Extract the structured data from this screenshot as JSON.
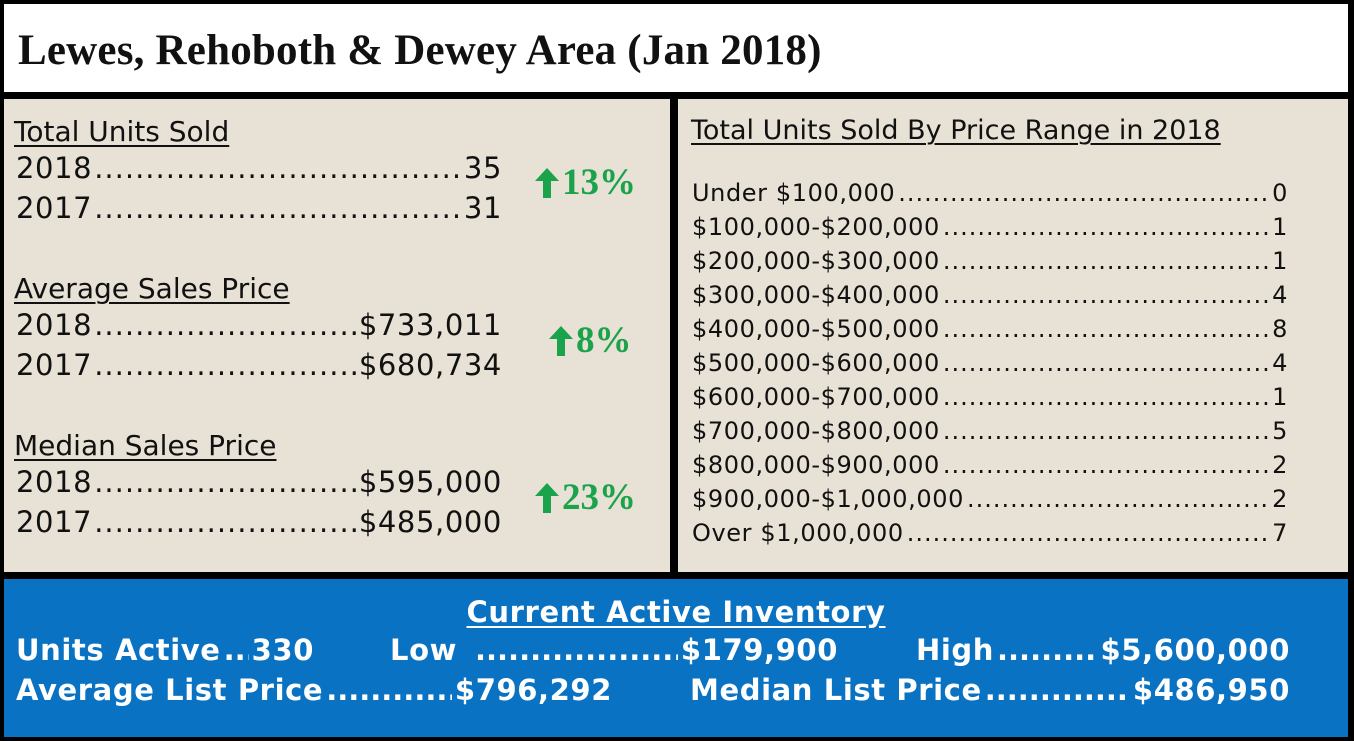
{
  "title": "Lewes, Rehoboth & Dewey Area (Jan 2018)",
  "colors": {
    "accent_green": "#1aa34a",
    "panel_bg": "#e8e1d5",
    "inventory_bg": "#0a72c2"
  },
  "units_sold": {
    "heading": "Total Units Sold",
    "rows": [
      {
        "label": "2018",
        "value": "35"
      },
      {
        "label": "2017",
        "value": "31"
      }
    ],
    "change": "13%",
    "change_icon": "arrow-up-icon"
  },
  "avg_price": {
    "heading": "Average Sales Price",
    "rows": [
      {
        "label": "2018",
        "value": "$733,011"
      },
      {
        "label": "2017",
        "value": "$680,734"
      }
    ],
    "change": "8%",
    "change_icon": "arrow-up-icon"
  },
  "median_price": {
    "heading": "Median Sales Price",
    "rows": [
      {
        "label": "2018",
        "value": "$595,000"
      },
      {
        "label": "2017",
        "value": "$485,000"
      }
    ],
    "change": "23%",
    "change_icon": "arrow-up-icon"
  },
  "price_range": {
    "heading": "Total Units Sold By Price Range in 2018",
    "rows": [
      {
        "label": "Under $100,000",
        "value": "0"
      },
      {
        "label": "$100,000-$200,000",
        "value": "1"
      },
      {
        "label": "$200,000-$300,000",
        "value": "1"
      },
      {
        "label": "$300,000-$400,000",
        "value": "4"
      },
      {
        "label": "$400,000-$500,000",
        "value": "8"
      },
      {
        "label": "$500,000-$600,000",
        "value": "4"
      },
      {
        "label": "$600,000-$700,000",
        "value": "1"
      },
      {
        "label": "$700,000-$800,000",
        "value": "5"
      },
      {
        "label": "$800,000-$900,000",
        "value": "2"
      },
      {
        "label": "$900,000-$1,000,000",
        "value": "2"
      },
      {
        "label": "Over $1,000,000",
        "value": "7"
      }
    ]
  },
  "inventory": {
    "heading": "Current Active Inventory",
    "units_active": {
      "label": "Units Active",
      "value": "330"
    },
    "low": {
      "label": "Low",
      "value": "$179,900"
    },
    "high": {
      "label": "High",
      "value": "$5,600,000"
    },
    "avg_list": {
      "label": "Average List Price",
      "value": "$796,292"
    },
    "median_list": {
      "label": "Median List Price",
      "value": "$486,950"
    }
  }
}
